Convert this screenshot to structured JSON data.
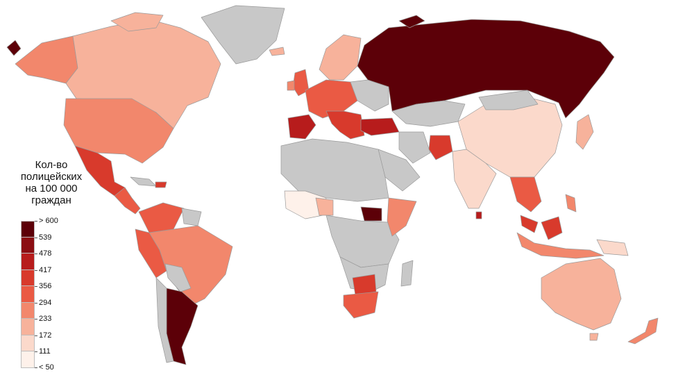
{
  "legend": {
    "title_lines": [
      "Кол-во",
      "полицейских",
      "на 100 000",
      "граждан"
    ],
    "ticks": [
      "> 600",
      "539",
      "478",
      "417",
      "356",
      "294",
      "233",
      "172",
      "111",
      "< 50"
    ],
    "colors": [
      "#5c0008",
      "#8b0d12",
      "#b71c1c",
      "#d83a2c",
      "#ea5a44",
      "#f2876c",
      "#f7b29b",
      "#fbd9cb",
      "#fef1ea"
    ]
  },
  "palette": {
    "no_data": "#c8c8c8",
    "ocean": "#ffffff"
  }
}
